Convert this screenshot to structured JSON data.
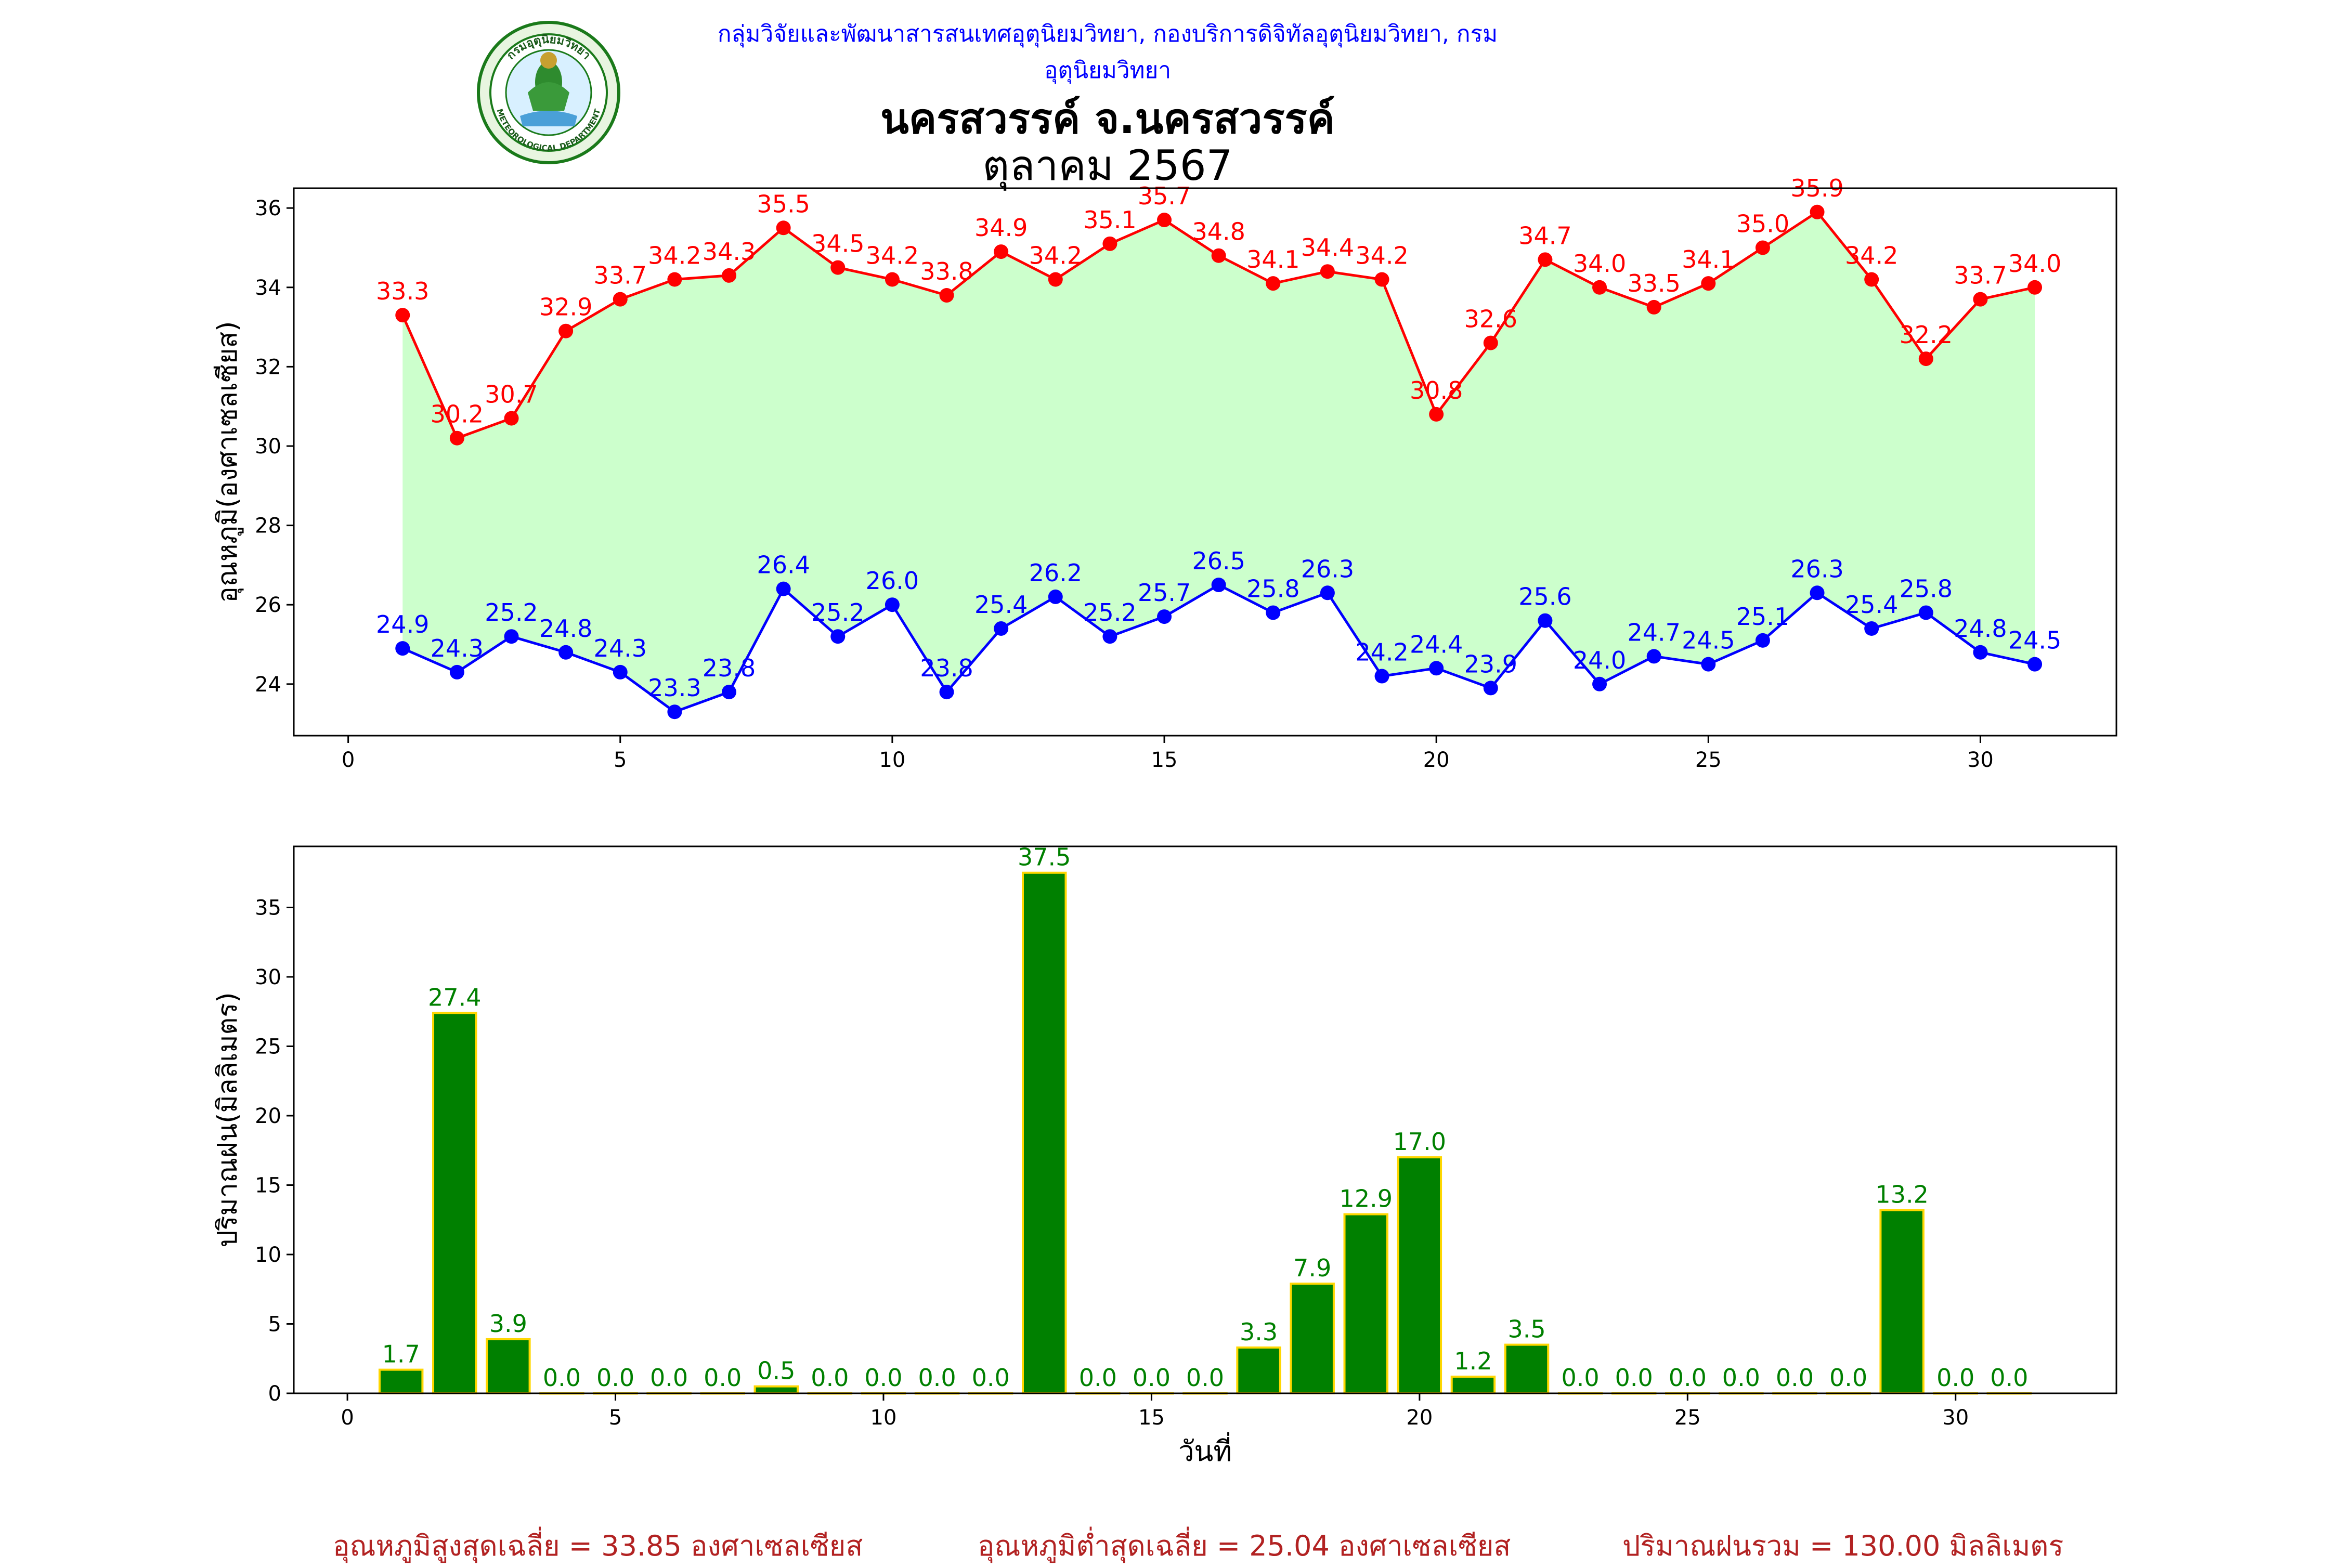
{
  "header": {
    "org": "กลุ่มวิจัยและพัฒนาสารสนเทศอุตุนิยมวิทยา, กองบริการดิจิทัลอุตุนิยมวิทยา, กรมอุตุนิยมวิทยา",
    "title_line1": "นครสวรรค์  จ.นครสวรรค์",
    "title_line2": "ตุลาคม 2567",
    "logo_top_text": "กรมอุตุนิยมวิทยา",
    "logo_bottom_text": "METEOROLOGICAL DEPARTMENT"
  },
  "colors": {
    "tmax": "#ff0000",
    "tmin": "#0000ff",
    "fill": "#ccffcc",
    "rain_bar": "#008000",
    "rain_edge": "#ffd700",
    "rain_label": "#008000",
    "footer": "#b22222",
    "org": "#0000ff"
  },
  "chart_data": [
    {
      "type": "line",
      "ylabel": "อุณหภูมิ(องศาเซลเซียส)",
      "xlim": [
        -1,
        32.5
      ],
      "ylim": [
        22.7,
        36.5
      ],
      "xticks": [
        0,
        5,
        10,
        15,
        20,
        25,
        30
      ],
      "yticks": [
        24,
        26,
        28,
        30,
        32,
        34,
        36
      ],
      "x": [
        1,
        2,
        3,
        4,
        5,
        6,
        7,
        8,
        9,
        10,
        11,
        12,
        13,
        14,
        15,
        16,
        17,
        18,
        19,
        20,
        21,
        22,
        23,
        24,
        25,
        26,
        27,
        28,
        29,
        30,
        31
      ],
      "series": [
        {
          "key": "tmax",
          "values": [
            33.3,
            30.2,
            30.7,
            32.9,
            33.7,
            34.2,
            34.3,
            35.5,
            34.5,
            34.2,
            33.8,
            34.9,
            34.2,
            35.1,
            35.7,
            34.8,
            34.1,
            34.4,
            34.2,
            30.8,
            32.6,
            34.7,
            34.0,
            33.5,
            34.1,
            35.0,
            35.9,
            34.2,
            32.2,
            33.7,
            34.0
          ]
        },
        {
          "key": "tmin",
          "values": [
            24.9,
            24.3,
            25.2,
            24.8,
            24.3,
            23.3,
            23.8,
            26.4,
            25.2,
            26.0,
            23.8,
            25.4,
            26.2,
            25.2,
            25.7,
            26.5,
            25.8,
            26.3,
            24.2,
            24.4,
            23.9,
            25.6,
            24.0,
            24.7,
            24.5,
            25.1,
            26.3,
            25.4,
            25.8,
            24.8,
            24.5
          ]
        }
      ],
      "fill_between": true,
      "grid": false
    },
    {
      "type": "bar",
      "xlabel": "วันที่",
      "ylabel": "ปริมาณฝน(มิลลิเมตร)",
      "xlim": [
        -1,
        33
      ],
      "ylim": [
        0,
        39.4
      ],
      "xticks": [
        0,
        5,
        10,
        15,
        20,
        25,
        30
      ],
      "yticks": [
        0,
        5,
        10,
        15,
        20,
        25,
        30,
        35
      ],
      "x": [
        1,
        2,
        3,
        4,
        5,
        6,
        7,
        8,
        9,
        10,
        11,
        12,
        13,
        14,
        15,
        16,
        17,
        18,
        19,
        20,
        21,
        22,
        23,
        24,
        25,
        26,
        27,
        28,
        29,
        30,
        31
      ],
      "values": [
        1.7,
        27.4,
        3.9,
        0.0,
        0.0,
        0.0,
        0.0,
        0.5,
        0.0,
        0.0,
        0.0,
        0.0,
        37.5,
        0.0,
        0.0,
        0.0,
        3.3,
        7.9,
        12.9,
        17.0,
        1.2,
        3.5,
        0.0,
        0.0,
        0.0,
        0.0,
        0.0,
        0.0,
        13.2,
        0.0,
        0.0
      ],
      "grid": false
    }
  ],
  "footer": {
    "avg_max": "อุณหภูมิสูงสุดเฉลี่ย = 33.85 องศาเซลเซียส",
    "avg_min": "อุณหภูมิต่ำสุดเฉลี่ย = 25.04 องศาเซลเซียส",
    "rain_total": "ปริมาณฝนรวม = 130.00 มิลลิเมตร"
  }
}
